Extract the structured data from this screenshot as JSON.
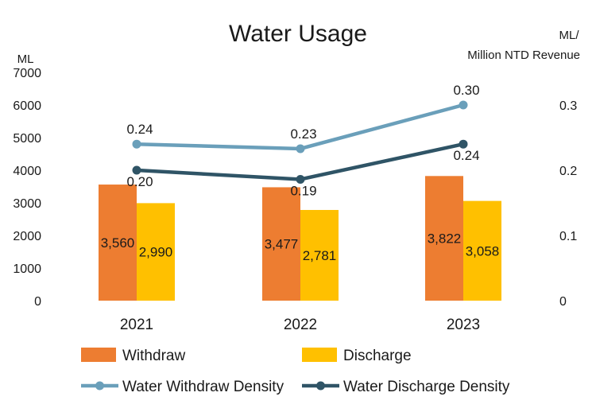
{
  "chart_data": {
    "type": "bar",
    "title": "Water Usage",
    "y_left_unit": "ML",
    "y_right_unit_line1": "ML/",
    "y_right_unit_line2": "Million NTD Revenue",
    "categories": [
      "2021",
      "2022",
      "2023"
    ],
    "ylim_left": [
      0,
      7000
    ],
    "yticks_left": [
      "0",
      "1000",
      "2000",
      "3000",
      "4000",
      "5000",
      "6000",
      "7000"
    ],
    "ylim_right": [
      0,
      0.35
    ],
    "yticks_right": [
      "0",
      "0.1",
      "0.2",
      "0.3"
    ],
    "grid": false,
    "legend_position": "bottom",
    "series": [
      {
        "name": "Withdraw",
        "kind": "bar",
        "color": "#ED7D31",
        "values": [
          3560,
          3477,
          3822
        ],
        "labels": [
          "3,560",
          "3,477",
          "3,822"
        ]
      },
      {
        "name": "Discharge",
        "kind": "bar",
        "color": "#FFC000",
        "values": [
          2990,
          2781,
          3058
        ],
        "labels": [
          "2,990",
          "2,781",
          "3,058"
        ]
      },
      {
        "name": "Water Withdraw Density",
        "kind": "line",
        "axis": "right",
        "color": "#6A9FBA",
        "values": [
          0.24,
          0.233,
          0.3
        ],
        "labels": [
          "0.24",
          "0.23",
          "0.30"
        ]
      },
      {
        "name": "Water Discharge Density",
        "kind": "line",
        "axis": "right",
        "color": "#2F5466",
        "values": [
          0.2,
          0.186,
          0.24
        ],
        "labels": [
          "0.20",
          "0.19",
          "0.24"
        ]
      }
    ]
  }
}
